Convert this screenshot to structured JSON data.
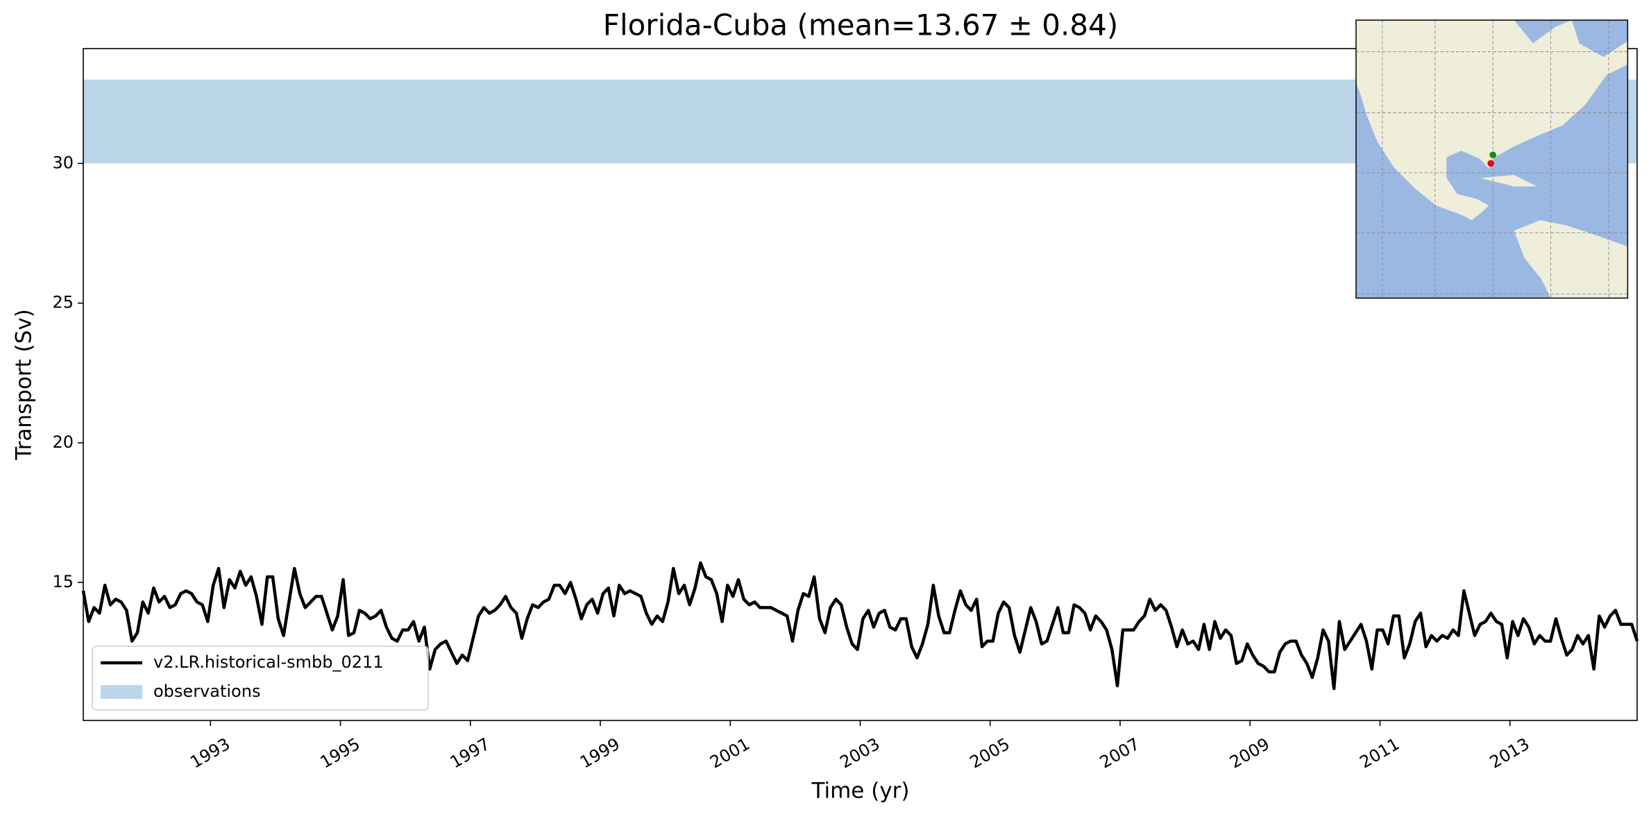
{
  "chart_data": {
    "type": "line",
    "title": "Florida-Cuba (mean=13.67 ± 0.84)",
    "x_label": "Time (yr)",
    "y_label": "Transport (Sv)",
    "xlim": [
      1991.042,
      2014.958
    ],
    "ylim": [
      10.06,
      34.11
    ],
    "xticks": [
      1993,
      1995,
      1997,
      1999,
      2001,
      2003,
      2005,
      2007,
      2009,
      2011,
      2013
    ],
    "yticks": [
      15,
      20,
      25,
      30
    ],
    "legend": "lower left",
    "band": {
      "name": "observations",
      "color": "#bcd6e9",
      "range": [
        30,
        33
      ]
    },
    "x": [
      1991.042,
      1991.125,
      1991.208,
      1991.292,
      1991.375,
      1991.458,
      1991.542,
      1991.625,
      1991.708,
      1991.792,
      1991.875,
      1991.958,
      1992.042,
      1992.125,
      1992.208,
      1992.292,
      1992.375,
      1992.458,
      1992.542,
      1992.625,
      1992.708,
      1992.792,
      1992.875,
      1992.958,
      1993.042,
      1993.125,
      1993.208,
      1993.292,
      1993.375,
      1993.458,
      1993.542,
      1993.625,
      1993.708,
      1993.792,
      1993.875,
      1993.958,
      1994.042,
      1994.125,
      1994.208,
      1994.292,
      1994.375,
      1994.458,
      1994.542,
      1994.625,
      1994.708,
      1994.792,
      1994.875,
      1994.958,
      1995.042,
      1995.125,
      1995.208,
      1995.292,
      1995.375,
      1995.458,
      1995.542,
      1995.625,
      1995.708,
      1995.792,
      1995.875,
      1995.958,
      1996.042,
      1996.125,
      1996.208,
      1996.292,
      1996.375,
      1996.458,
      1996.542,
      1996.625,
      1996.708,
      1996.792,
      1996.875,
      1996.958,
      1997.042,
      1997.125,
      1997.208,
      1997.292,
      1997.375,
      1997.458,
      1997.542,
      1997.625,
      1997.708,
      1997.792,
      1997.875,
      1997.958,
      1998.042,
      1998.125,
      1998.208,
      1998.292,
      1998.375,
      1998.458,
      1998.542,
      1998.625,
      1998.708,
      1998.792,
      1998.875,
      1998.958,
      1999.042,
      1999.125,
      1999.208,
      1999.292,
      1999.375,
      1999.458,
      1999.542,
      1999.625,
      1999.708,
      1999.792,
      1999.875,
      1999.958,
      2000.042,
      2000.125,
      2000.208,
      2000.292,
      2000.375,
      2000.458,
      2000.542,
      2000.625,
      2000.708,
      2000.792,
      2000.875,
      2000.958,
      2001.042,
      2001.125,
      2001.208,
      2001.292,
      2001.375,
      2001.458,
      2001.542,
      2001.625,
      2001.708,
      2001.792,
      2001.875,
      2001.958,
      2002.042,
      2002.125,
      2002.208,
      2002.292,
      2002.375,
      2002.458,
      2002.542,
      2002.625,
      2002.708,
      2002.792,
      2002.875,
      2002.958,
      2003.042,
      2003.125,
      2003.208,
      2003.292,
      2003.375,
      2003.458,
      2003.542,
      2003.625,
      2003.708,
      2003.792,
      2003.875,
      2003.958,
      2004.042,
      2004.125,
      2004.208,
      2004.292,
      2004.375,
      2004.458,
      2004.542,
      2004.625,
      2004.708,
      2004.792,
      2004.875,
      2004.958,
      2005.042,
      2005.125,
      2005.208,
      2005.292,
      2005.375,
      2005.458,
      2005.542,
      2005.625,
      2005.708,
      2005.792,
      2005.875,
      2005.958,
      2006.042,
      2006.125,
      2006.208,
      2006.292,
      2006.375,
      2006.458,
      2006.542,
      2006.625,
      2006.708,
      2006.792,
      2006.875,
      2006.958,
      2007.042,
      2007.125,
      2007.208,
      2007.292,
      2007.375,
      2007.458,
      2007.542,
      2007.625,
      2007.708,
      2007.792,
      2007.875,
      2007.958,
      2008.042,
      2008.125,
      2008.208,
      2008.292,
      2008.375,
      2008.458,
      2008.542,
      2008.625,
      2008.708,
      2008.792,
      2008.875,
      2008.958,
      2009.042,
      2009.125,
      2009.208,
      2009.292,
      2009.375,
      2009.458,
      2009.542,
      2009.625,
      2009.708,
      2009.792,
      2009.875,
      2009.958,
      2010.042,
      2010.125,
      2010.208,
      2010.292,
      2010.375,
      2010.458,
      2010.542,
      2010.625,
      2010.708,
      2010.792,
      2010.875,
      2010.958,
      2011.042,
      2011.125,
      2011.208,
      2011.292,
      2011.375,
      2011.458,
      2011.542,
      2011.625,
      2011.708,
      2011.792,
      2011.875,
      2011.958,
      2012.042,
      2012.125,
      2012.208,
      2012.292,
      2012.375,
      2012.458,
      2012.542,
      2012.625,
      2012.708,
      2012.792,
      2012.875,
      2012.958,
      2013.042,
      2013.125,
      2013.208,
      2013.292,
      2013.375,
      2013.458,
      2013.542,
      2013.625,
      2013.708,
      2013.792,
      2013.875,
      2013.958,
      2014.042,
      2014.125,
      2014.208,
      2014.292,
      2014.375,
      2014.458,
      2014.542,
      2014.625,
      2014.708,
      2014.792,
      2014.875,
      2014.958
    ],
    "series": [
      {
        "name": "v2.LR.historical-smbb_0211",
        "color": "#000000",
        "values": [
          14.7,
          13.6,
          14.1,
          13.9,
          14.9,
          14.2,
          14.4,
          14.3,
          14.0,
          12.9,
          13.2,
          14.3,
          13.9,
          14.8,
          14.3,
          14.5,
          14.1,
          14.2,
          14.6,
          14.7,
          14.6,
          14.3,
          14.2,
          13.6,
          14.9,
          15.5,
          14.1,
          15.1,
          14.8,
          15.4,
          14.9,
          15.2,
          14.5,
          13.5,
          15.2,
          15.2,
          13.7,
          13.1,
          14.3,
          15.5,
          14.6,
          14.1,
          14.3,
          14.5,
          14.5,
          13.9,
          13.3,
          13.8,
          15.1,
          13.1,
          13.2,
          14.0,
          13.9,
          13.7,
          13.8,
          14.0,
          13.4,
          13.0,
          12.9,
          13.3,
          13.3,
          13.6,
          12.9,
          13.4,
          11.9,
          12.6,
          12.8,
          12.9,
          12.5,
          12.1,
          12.4,
          12.2,
          13.0,
          13.8,
          14.1,
          13.9,
          14.0,
          14.2,
          14.5,
          14.1,
          13.9,
          13.0,
          13.7,
          14.2,
          14.1,
          14.3,
          14.4,
          14.9,
          14.9,
          14.6,
          15.0,
          14.4,
          13.7,
          14.2,
          14.4,
          13.9,
          14.6,
          14.8,
          13.8,
          14.9,
          14.6,
          14.7,
          14.6,
          14.5,
          13.9,
          13.5,
          13.8,
          13.6,
          14.3,
          15.5,
          14.6,
          14.9,
          14.2,
          14.8,
          15.7,
          15.2,
          15.1,
          14.6,
          13.6,
          14.9,
          14.5,
          15.1,
          14.4,
          14.2,
          14.3,
          14.1,
          14.1,
          14.1,
          14.0,
          13.9,
          13.8,
          12.9,
          14.0,
          14.6,
          14.5,
          15.2,
          13.7,
          13.2,
          14.1,
          14.4,
          14.2,
          13.4,
          12.8,
          12.6,
          13.7,
          14.0,
          13.4,
          13.9,
          14.0,
          13.4,
          13.3,
          13.7,
          13.7,
          12.7,
          12.3,
          12.8,
          13.5,
          14.9,
          13.8,
          13.2,
          13.2,
          14.0,
          14.7,
          14.2,
          14.0,
          14.4,
          12.7,
          12.9,
          12.9,
          13.9,
          14.3,
          14.1,
          13.1,
          12.5,
          13.3,
          14.1,
          13.6,
          12.8,
          12.9,
          13.5,
          14.1,
          13.2,
          13.2,
          14.2,
          14.1,
          13.9,
          13.3,
          13.8,
          13.6,
          13.3,
          12.6,
          11.3,
          13.3,
          13.3,
          13.3,
          13.6,
          13.8,
          14.4,
          14.0,
          14.2,
          14.0,
          13.4,
          12.7,
          13.3,
          12.8,
          12.9,
          12.6,
          13.5,
          12.6,
          13.6,
          13.0,
          13.3,
          13.1,
          12.1,
          12.2,
          12.8,
          12.4,
          12.1,
          12.0,
          11.8,
          11.8,
          12.5,
          12.8,
          12.9,
          12.9,
          12.4,
          12.1,
          11.6,
          12.3,
          13.3,
          12.9,
          11.2,
          13.6,
          12.6,
          12.9,
          13.2,
          13.5,
          12.9,
          11.9,
          13.3,
          13.3,
          12.8,
          13.8,
          13.8,
          12.3,
          12.8,
          13.6,
          13.9,
          12.7,
          13.1,
          12.9,
          13.1,
          13.0,
          13.3,
          13.1,
          14.7,
          13.9,
          13.1,
          13.5,
          13.6,
          13.9,
          13.6,
          13.5,
          12.3,
          13.6,
          13.1,
          13.7,
          13.4,
          12.8,
          13.1,
          12.9,
          12.9,
          13.7,
          13.0,
          12.4,
          12.6,
          13.1,
          12.8,
          13.1,
          11.9,
          13.8,
          13.4,
          13.8,
          14.0,
          13.5,
          13.5,
          13.5,
          12.9
        ]
      }
    ]
  }
}
